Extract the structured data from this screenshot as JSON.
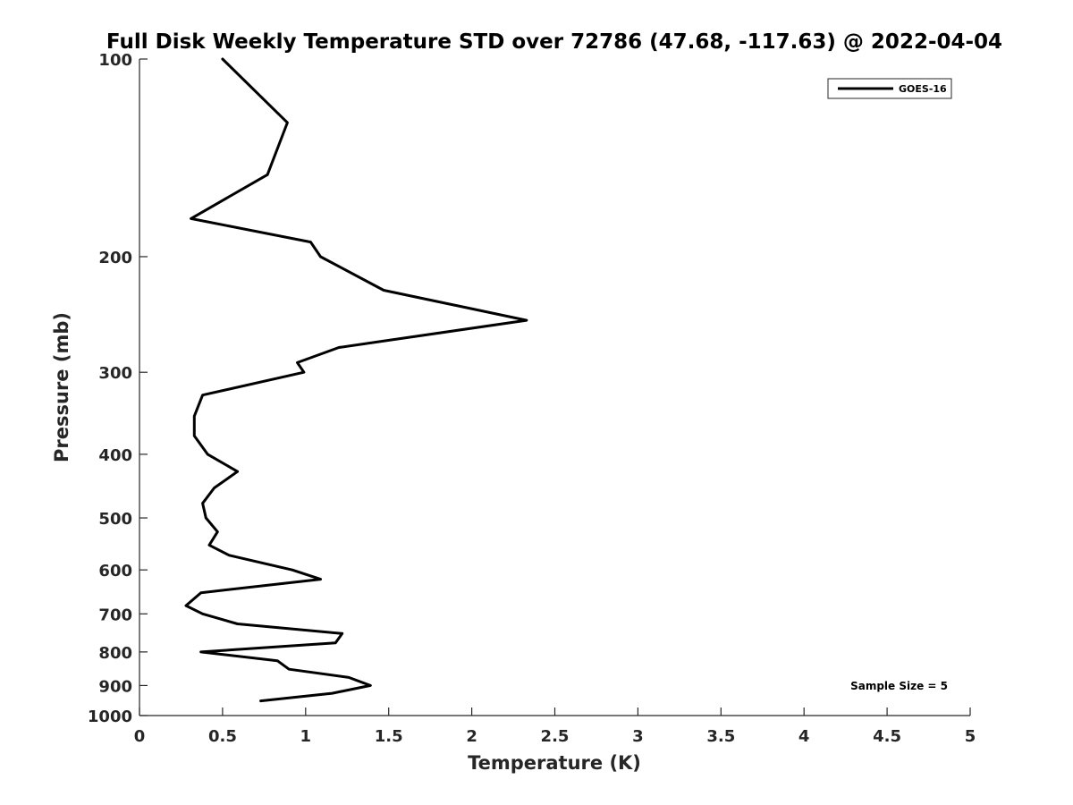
{
  "chart_data": {
    "type": "line",
    "title": "Full Disk Weekly Temperature STD over 72786 (47.68, -117.63) @ 2022-04-04",
    "xlabel": "Temperature (K)",
    "ylabel": "Pressure (mb)",
    "xlim": [
      0,
      5
    ],
    "ylim": [
      100,
      1000
    ],
    "y_scale": "log",
    "y_reversed": true,
    "x_ticks": [
      "0",
      "0.5",
      "1",
      "1.5",
      "2",
      "2.5",
      "3",
      "3.5",
      "4",
      "4.5",
      "5"
    ],
    "x_tick_values": [
      0,
      0.5,
      1,
      1.5,
      2,
      2.5,
      3,
      3.5,
      4,
      4.5,
      5
    ],
    "y_ticks": [
      "100",
      "200",
      "300",
      "400",
      "500",
      "600",
      "700",
      "800",
      "900",
      "1000"
    ],
    "y_tick_values": [
      100,
      200,
      300,
      400,
      500,
      600,
      700,
      800,
      900,
      1000
    ],
    "grid": false,
    "legend_position": "top-right",
    "annotation": "Sample Size = 5",
    "series": [
      {
        "name": "GOES-16",
        "color": "#000000",
        "x": [
          0.5,
          0.89,
          0.77,
          0.31,
          1.03,
          1.09,
          1.47,
          2.33,
          1.2,
          0.95,
          0.99,
          0.38,
          0.33,
          0.33,
          0.41,
          0.59,
          0.45,
          0.38,
          0.4,
          0.47,
          0.42,
          0.54,
          0.92,
          1.09,
          0.37,
          0.28,
          0.38,
          0.59,
          1.22,
          1.18,
          0.37,
          0.83,
          0.9,
          1.26,
          1.39,
          1.16,
          0.73
        ],
        "y": [
          100,
          125,
          150,
          175,
          190,
          200,
          225,
          250,
          275,
          290,
          300,
          325,
          350,
          375,
          400,
          425,
          450,
          475,
          500,
          525,
          550,
          570,
          600,
          620,
          650,
          680,
          700,
          725,
          750,
          775,
          800,
          825,
          850,
          875,
          900,
          925,
          950
        ]
      }
    ]
  }
}
